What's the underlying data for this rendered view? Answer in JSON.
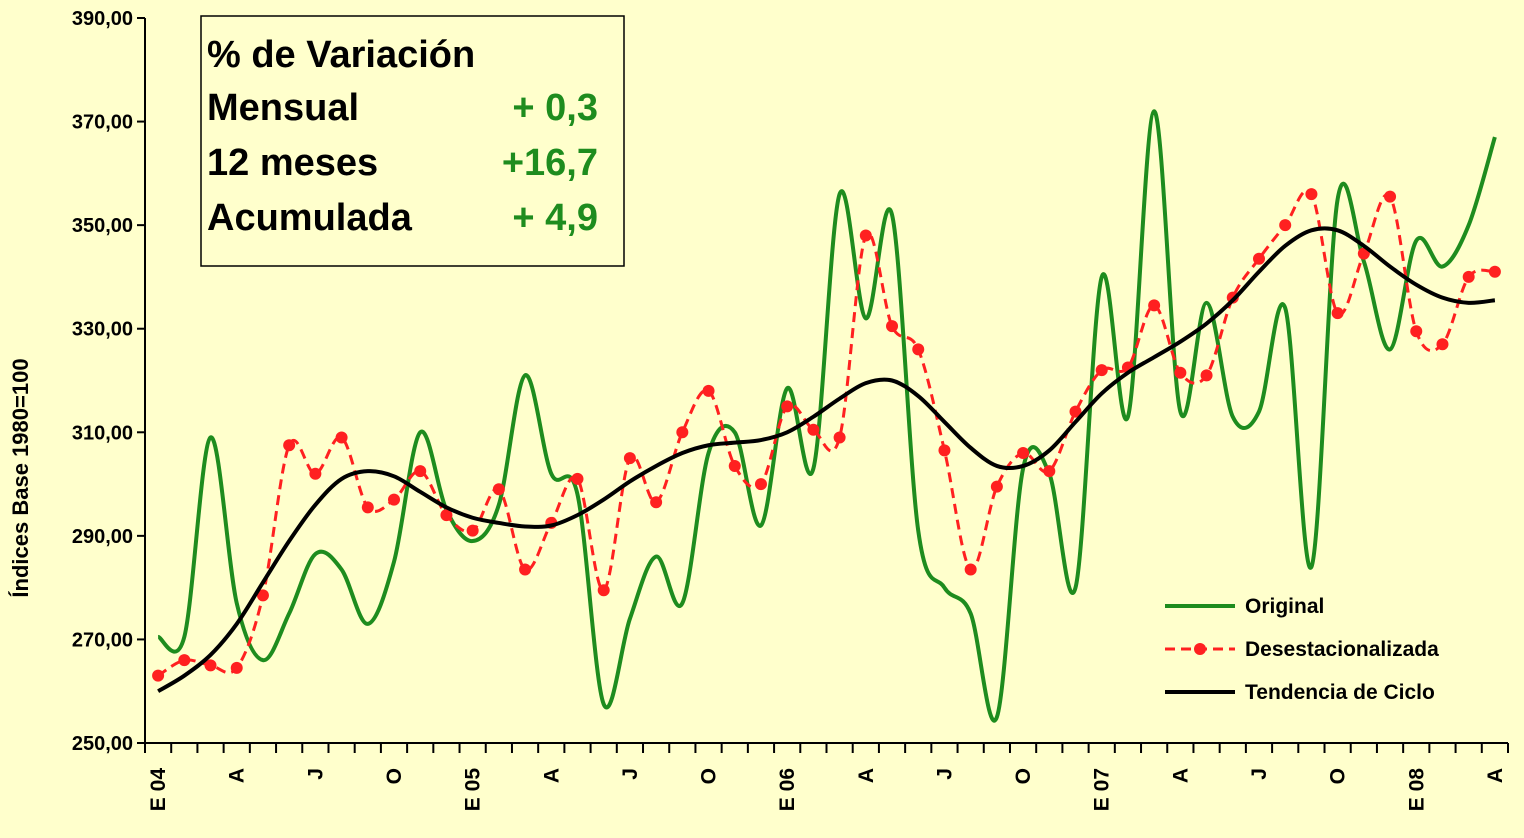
{
  "chart_data": {
    "type": "line",
    "ylabel": "Índices Base 1980=100",
    "categories": [
      "E 04",
      null,
      null,
      "A",
      null,
      null,
      "J",
      null,
      null,
      "O",
      null,
      null,
      "E 05",
      null,
      null,
      "A",
      null,
      null,
      "J",
      null,
      null,
      "O",
      null,
      null,
      "E 06",
      null,
      null,
      "A",
      null,
      null,
      "J",
      null,
      null,
      "O",
      null,
      null,
      "E 07",
      null,
      null,
      "A",
      null,
      null,
      "J",
      null,
      null,
      "O",
      null,
      null,
      "E 08",
      null,
      null,
      "A"
    ],
    "series": [
      {
        "name": "Original",
        "color": "#1e8c1e",
        "dash": false,
        "markers": false,
        "values": [
          270.5,
          270.5,
          309,
          277,
          266,
          275,
          286.5,
          283.5,
          273,
          285,
          310,
          295,
          289,
          296,
          321,
          302,
          298,
          257.5,
          274,
          286,
          277,
          306,
          310,
          292,
          318.5,
          303,
          356,
          332,
          352,
          291,
          280,
          275,
          255,
          303,
          302,
          280,
          340,
          313,
          372,
          314,
          335,
          313,
          314,
          334,
          284,
          355,
          343,
          326,
          347,
          342,
          350,
          367
        ]
      },
      {
        "name": "Desestacionalizada",
        "color": "#ff2020",
        "dash": true,
        "markers": true,
        "values": [
          263,
          266,
          265,
          264.5,
          278.5,
          307.5,
          302,
          309,
          295.5,
          297,
          302.5,
          294,
          291,
          299,
          283.5,
          292.5,
          301,
          279.5,
          305,
          296.5,
          310,
          318,
          303.5,
          300,
          315,
          310.5,
          309,
          348,
          330.5,
          326,
          306.5,
          283.5,
          299.5,
          306,
          302.5,
          314,
          322,
          322.5,
          334.5,
          321.5,
          321,
          336,
          343.5,
          350,
          356,
          333,
          344.5,
          355.5,
          329.5,
          327,
          340,
          341
        ]
      },
      {
        "name": "Tendencia de Ciclo",
        "color": "#000000",
        "dash": false,
        "markers": false,
        "values": [
          260,
          263,
          267,
          273,
          281,
          289,
          296,
          301,
          302.5,
          301.5,
          298.5,
          295.5,
          293.5,
          292.5,
          291.8,
          292,
          294,
          297,
          300.5,
          303.5,
          306,
          307.5,
          308,
          308.5,
          310,
          313,
          316.5,
          319.5,
          320,
          317,
          312,
          307,
          303.5,
          303.5,
          306.5,
          312,
          317.5,
          321.5,
          324.5,
          327.5,
          331,
          335.5,
          341,
          346,
          349,
          349,
          346,
          342,
          338.5,
          336,
          335,
          335.5
        ]
      }
    ],
    "ylim": [
      250,
      390
    ],
    "yticks": [
      {
        "value": 250,
        "label": "250,00"
      },
      {
        "value": 270,
        "label": "270,00"
      },
      {
        "value": 290,
        "label": "290,00"
      },
      {
        "value": 310,
        "label": "310,00"
      },
      {
        "value": 330,
        "label": "330,00"
      },
      {
        "value": 350,
        "label": "350,00"
      },
      {
        "value": 370,
        "label": "370,00"
      },
      {
        "value": 390,
        "label": "390,00"
      }
    ],
    "legend": "lower right",
    "annotation": {
      "title": "% de Variación",
      "rows": [
        [
          "Mensual",
          "+ 0,3"
        ],
        [
          "12 meses",
          "+16,7"
        ],
        [
          "Acumulada",
          "+ 4,9"
        ]
      ]
    }
  }
}
